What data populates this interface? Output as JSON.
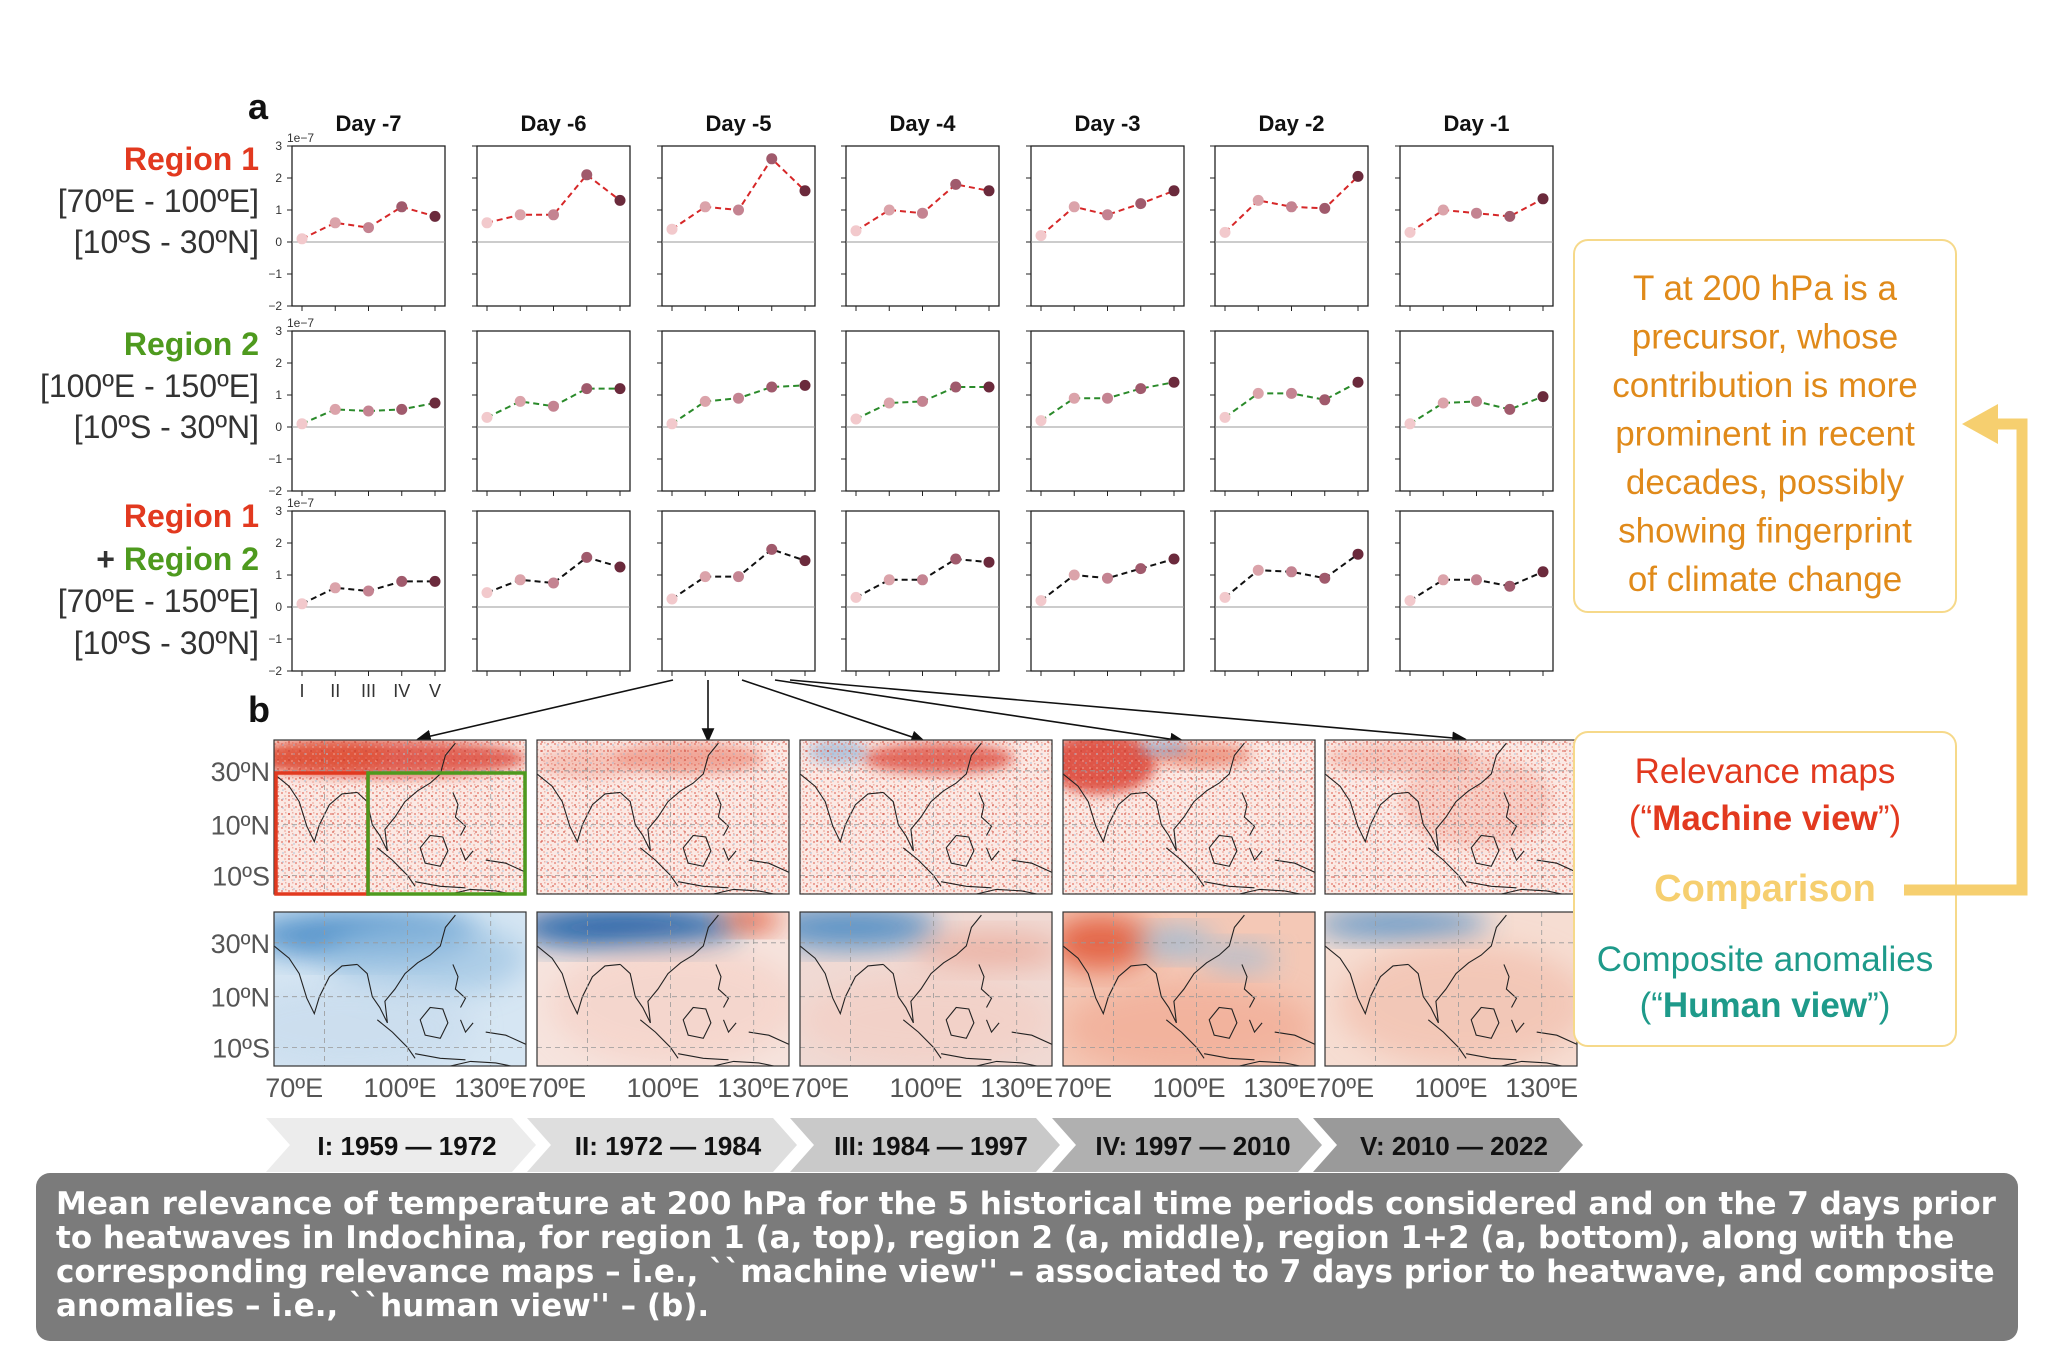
{
  "panel_labels": {
    "a": "a",
    "b": "b"
  },
  "scale_label": "1e−7",
  "days": [
    "Day -7",
    "Day -6",
    "Day -5",
    "Day -4",
    "Day -3",
    "Day -2",
    "Day -1"
  ],
  "rows": [
    {
      "lines": [
        {
          "text": "Region 1",
          "color": "#e2391f"
        },
        {
          "text": "[70ºE - 100ºE]",
          "color": "#333333"
        },
        {
          "text": "[10ºS - 30ºN]",
          "color": "#333333"
        }
      ],
      "line_color": "#d62728"
    },
    {
      "lines": [
        {
          "text": "Region 2",
          "color": "#4e9a1e"
        },
        {
          "text": "[100ºE - 150ºE]",
          "color": "#333333"
        },
        {
          "text": "[10ºS - 30ºN]",
          "color": "#333333"
        }
      ],
      "line_color": "#2a8a2a"
    },
    {
      "lines": [
        {
          "text": "Region 1",
          "color": "#e2391f"
        },
        {
          "text": "+ Region 2",
          "color": "#4e9a1e",
          "prefix": "+ ",
          "prefix_color": "#333333",
          "main": "Region 2"
        },
        {
          "text": "[70ºE - 150ºE]",
          "color": "#333333"
        },
        {
          "text": "[10ºS - 30ºN]",
          "color": "#333333"
        }
      ],
      "line_color": "#111111"
    }
  ],
  "y_ticks": [
    "3",
    "2",
    "1",
    "0",
    "−1",
    "−2"
  ],
  "x_ticks": [
    "I",
    "II",
    "III",
    "IV",
    "V"
  ],
  "chart_data": {
    "type": "line",
    "x": [
      "I",
      "II",
      "III",
      "IV",
      "V"
    ],
    "ylim": [
      -2,
      3
    ],
    "y_scale": "1e-7",
    "marker_colors": [
      "#f2c9cc",
      "#dba3aa",
      "#c48391",
      "#a05a6c",
      "#6b2a3c"
    ],
    "panels": [
      [
        [
          0.1,
          0.6,
          0.45,
          1.1,
          0.8
        ],
        [
          0.6,
          0.85,
          0.85,
          2.1,
          1.3
        ],
        [
          0.4,
          1.1,
          1.0,
          2.6,
          1.6
        ],
        [
          0.35,
          1.0,
          0.9,
          1.8,
          1.6
        ],
        [
          0.2,
          1.1,
          0.85,
          1.2,
          1.6
        ],
        [
          0.3,
          1.3,
          1.1,
          1.05,
          2.05
        ],
        [
          0.3,
          1.0,
          0.9,
          0.8,
          1.35
        ]
      ],
      [
        [
          0.1,
          0.55,
          0.5,
          0.55,
          0.75
        ],
        [
          0.3,
          0.8,
          0.65,
          1.2,
          1.2
        ],
        [
          0.1,
          0.8,
          0.9,
          1.25,
          1.3
        ],
        [
          0.25,
          0.75,
          0.8,
          1.25,
          1.25
        ],
        [
          0.2,
          0.9,
          0.9,
          1.2,
          1.4
        ],
        [
          0.3,
          1.05,
          1.05,
          0.85,
          1.4
        ],
        [
          0.1,
          0.75,
          0.8,
          0.55,
          0.95
        ]
      ],
      [
        [
          0.1,
          0.6,
          0.5,
          0.8,
          0.8
        ],
        [
          0.45,
          0.85,
          0.75,
          1.55,
          1.25
        ],
        [
          0.25,
          0.95,
          0.95,
          1.8,
          1.45
        ],
        [
          0.3,
          0.85,
          0.85,
          1.5,
          1.4
        ],
        [
          0.2,
          1.0,
          0.9,
          1.2,
          1.5
        ],
        [
          0.3,
          1.15,
          1.1,
          0.9,
          1.65
        ],
        [
          0.2,
          0.85,
          0.85,
          0.65,
          1.1
        ]
      ]
    ]
  },
  "maps": {
    "lat_labels": [
      "30ºN",
      "10ºN",
      "10ºS"
    ],
    "lon_labels": [
      "70ºE",
      "100ºE",
      "130ºE"
    ],
    "region_colors": {
      "region1": "#e2391f",
      "region2": "#4e9a1e"
    }
  },
  "periods": [
    "I: 1959 — 1972",
    "II: 1972 — 1984",
    "III: 1984 — 1997",
    "IV: 1997 — 2010",
    "V: 2010 — 2022"
  ],
  "sidebar": {
    "box1": [
      "T at 200 hPa is a",
      "precursor, whose",
      "contribution is more",
      "prominent in recent",
      "decades, possibly",
      "showing fingerprint",
      "of climate change"
    ],
    "relevance_line1": "Relevance maps",
    "relevance_line2_open": "(“",
    "relevance_line2_bold": "Machine view",
    "relevance_line2_close": "”)",
    "comparison": "Comparison",
    "composite_line1": "Composite anomalies",
    "composite_line2_open": "(“",
    "composite_line2_bold": "Human view",
    "composite_line2_close": "”)",
    "colors": {
      "orange": "#e08a1a",
      "red": "#e2391f",
      "yellow": "#f6cf6f",
      "teal": "#1e9a8a",
      "box_border": "#f6d98a"
    }
  },
  "caption": "Mean relevance of temperature at 200 hPa for the 5 historical time periods considered and on the 7 days prior to heatwaves in Indochina, for region 1 (a, top), region 2 (a, middle), region 1+2 (a, bottom), along with the corresponding relevance maps – i.e., ``machine view'' – associated to 7 days prior to heatwave, and composite anomalies – i.e., ``human view'' – (b)."
}
